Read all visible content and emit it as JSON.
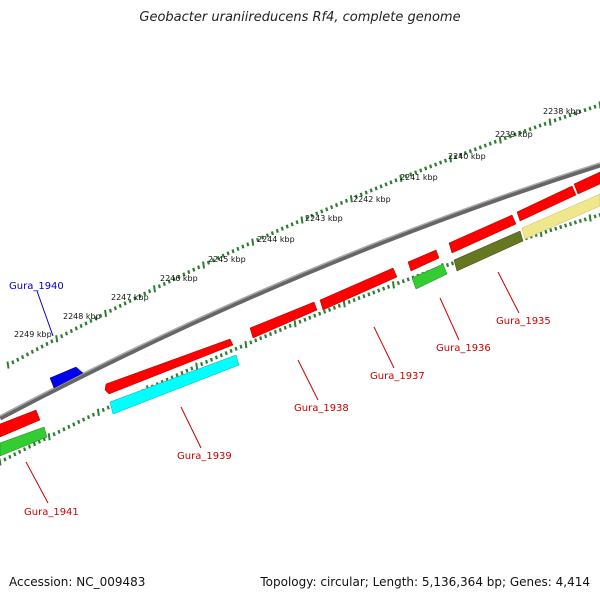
{
  "title": "Geobacter uraniireducens Rf4, complete genome",
  "footer": {
    "accession": "Accession: NC_009483",
    "stats": "Topology: circular; Length: 5,136,364 bp; Genes: 4,414"
  },
  "scale_labels": [
    "2238 kbp",
    "2239 kbp",
    "2240 kbp",
    "2241 kbp",
    "2242 kbp",
    "2243 kbp",
    "2244 kbp",
    "2245 kbp",
    "2246 kbp",
    "2247 kbp",
    "2248 kbp",
    "2249 kbp"
  ],
  "genes": [
    {
      "id": "Gura_1940",
      "color": "#0000cc"
    },
    {
      "id": "Gura_1941",
      "color": "#cc0000"
    },
    {
      "id": "Gura_1939",
      "color": "#cc0000"
    },
    {
      "id": "Gura_1938",
      "color": "#cc0000"
    },
    {
      "id": "Gura_1937",
      "color": "#cc0000"
    },
    {
      "id": "Gura_1936",
      "color": "#cc0000"
    },
    {
      "id": "Gura_1935",
      "color": "#cc0000"
    }
  ],
  "colors": {
    "backbone": "#808080",
    "scale_ticks": "#2e7d32",
    "cds_forward": "#ff0000",
    "cds_reverse": "#ff0000",
    "cds_blue": "#0000ee",
    "bar_cyan": "#00ffff",
    "bar_green": "#33cc33",
    "bar_olive": "#667722",
    "bar_khaki": "#f0e68c"
  }
}
